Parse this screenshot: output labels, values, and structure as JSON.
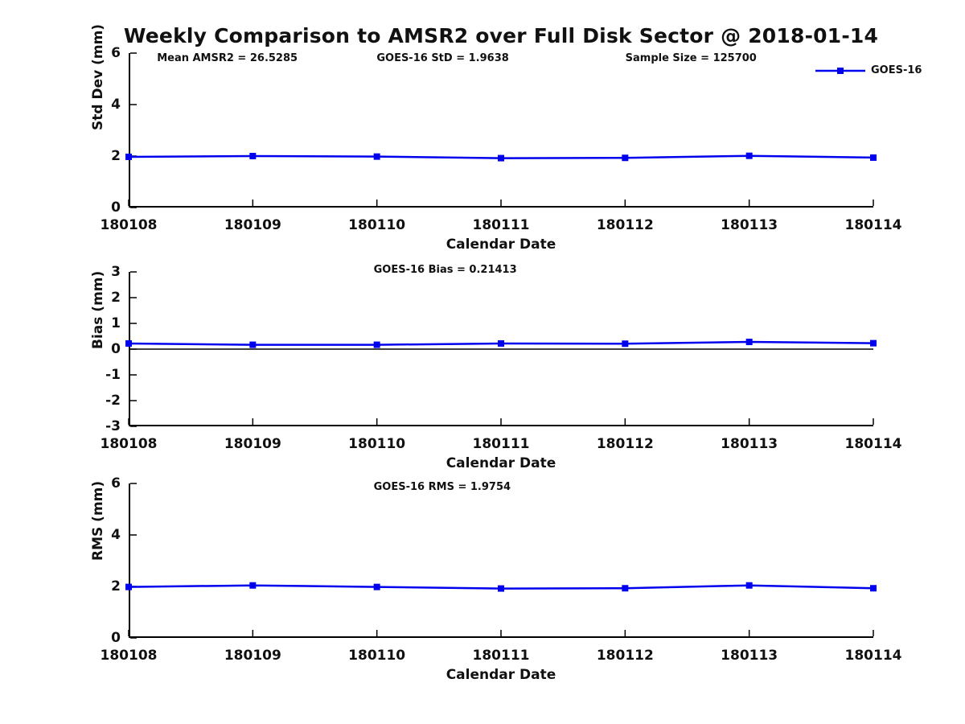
{
  "title": "Weekly Comparison to AMSR2 over Full Disk Sector @ 2018-01-14",
  "colors": {
    "line": "#0000ee",
    "axis": "#000000",
    "zero_line": "#000000",
    "text": "#111111",
    "background": "#ffffff"
  },
  "legend": {
    "label": "GOES-16",
    "position": "top-right",
    "marker": "square"
  },
  "chart_data": [
    {
      "type": "line",
      "name": "std-dev-panel",
      "ylabel": "Std Dev (mm)",
      "xlabel": "Calendar Date",
      "ylim": [
        0,
        6
      ],
      "yticks": [
        "0",
        "2",
        "4",
        "6"
      ],
      "grid": false,
      "zero_line": false,
      "categories": [
        "180108",
        "180109",
        "180110",
        "180111",
        "180112",
        "180113",
        "180114"
      ],
      "series": [
        {
          "name": "GOES-16",
          "values": [
            1.97,
            2.0,
            1.98,
            1.92,
            1.93,
            2.01,
            1.94
          ]
        }
      ],
      "annotations": [
        {
          "text": "Mean AMSR2 = 26.5285",
          "x": 0.038
        },
        {
          "text": "GOES-16 StD = 1.9638",
          "x": 0.333
        },
        {
          "text": "Sample Size = 125700",
          "x": 0.667
        }
      ]
    },
    {
      "type": "line",
      "name": "bias-panel",
      "ylabel": "Bias (mm)",
      "xlabel": "Calendar Date",
      "ylim": [
        -3,
        3
      ],
      "yticks": [
        "3",
        "2",
        "1",
        "0",
        "-1",
        "-2",
        "-3"
      ],
      "grid": false,
      "zero_line": true,
      "categories": [
        "180108",
        "180109",
        "180110",
        "180111",
        "180112",
        "180113",
        "180114"
      ],
      "series": [
        {
          "name": "GOES-16",
          "values": [
            0.22,
            0.17,
            0.17,
            0.22,
            0.21,
            0.28,
            0.23
          ]
        }
      ],
      "annotations": [
        {
          "text": "GOES-16 Bias  = 0.21413",
          "x": 0.329
        }
      ]
    },
    {
      "type": "line",
      "name": "rms-panel",
      "ylabel": "RMS (mm)",
      "xlabel": "Calendar Date",
      "ylim": [
        0,
        6
      ],
      "yticks": [
        "0",
        "2",
        "4",
        "6"
      ],
      "grid": false,
      "zero_line": false,
      "categories": [
        "180108",
        "180109",
        "180110",
        "180111",
        "180112",
        "180113",
        "180114"
      ],
      "series": [
        {
          "name": "GOES-16",
          "values": [
            1.98,
            2.04,
            1.98,
            1.92,
            1.93,
            2.04,
            1.93
          ]
        }
      ],
      "annotations": [
        {
          "text": "GOES-16 RMS = 1.9754",
          "x": 0.329
        }
      ]
    }
  ]
}
